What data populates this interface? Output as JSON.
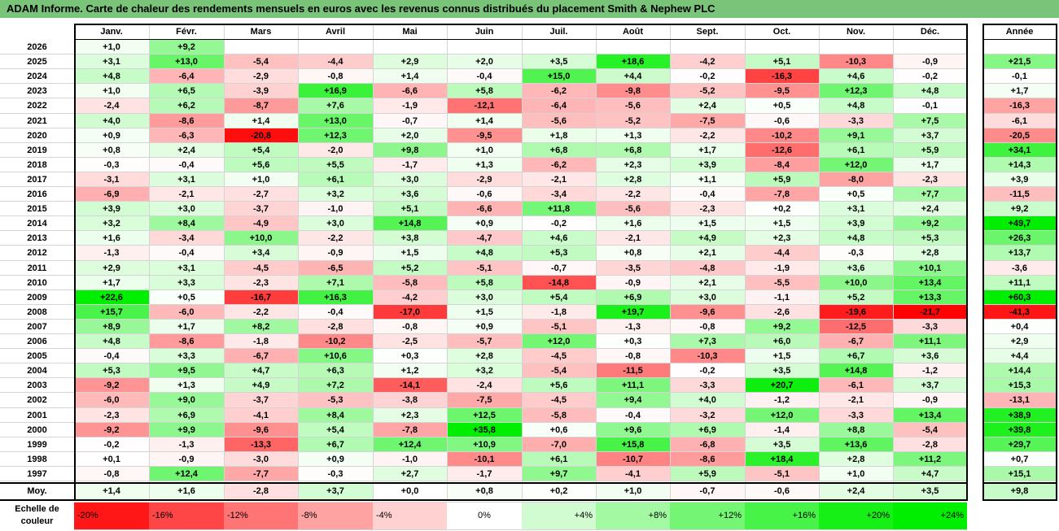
{
  "title": "ADAM Informe. Carte de chaleur des rendements mensuels en euros avec les revenus connus distribués du placement Smith & Nephew PLC",
  "colors": {
    "title_bar": "#7ac47a",
    "max_red": "#ff0000",
    "max_green": "#00ee00",
    "neutral": "#ffffff"
  },
  "chart_data": {
    "type": "heatmap",
    "title": "ADAM Informe. Carte de chaleur des rendements mensuels en euros avec les revenus connus distribués du placement Smith & Nephew PLC",
    "months": [
      "Janv.",
      "Févr.",
      "Mars",
      "Avril",
      "Mai",
      "Juin",
      "Juil.",
      "Août",
      "Sept.",
      "Oct.",
      "Nov.",
      "Déc."
    ],
    "year_header": "Année",
    "rows": [
      {
        "year": "2026",
        "values": [
          "+1,0",
          "+9,2",
          "",
          "",
          "",
          "",
          "",
          "",
          "",
          "",
          "",
          ""
        ],
        "annual": ""
      },
      {
        "year": "2025",
        "values": [
          "+3,1",
          "+13,0",
          "-5,4",
          "-4,4",
          "+2,9",
          "+2,0",
          "+3,5",
          "+18,6",
          "-4,2",
          "+5,1",
          "-10,3",
          "-0,9"
        ],
        "annual": "+21,5"
      },
      {
        "year": "2024",
        "values": [
          "+4,8",
          "-6,4",
          "-2,9",
          "-0,8",
          "+1,4",
          "-0,4",
          "+15,0",
          "+4,4",
          "-0,2",
          "-16,3",
          "+4,6",
          "-0,2"
        ],
        "annual": "-0,1"
      },
      {
        "year": "2023",
        "values": [
          "+1,0",
          "+6,5",
          "-3,9",
          "+16,9",
          "-6,6",
          "+5,8",
          "-6,2",
          "-9,8",
          "-5,2",
          "-9,5",
          "+12,3",
          "+4,8"
        ],
        "annual": "+1,7"
      },
      {
        "year": "2022",
        "values": [
          "-2,4",
          "+6,2",
          "-8,7",
          "+7,6",
          "-1,9",
          "-12,1",
          "-6,4",
          "-5,6",
          "+2,4",
          "+0,5",
          "+4,8",
          "-0,1"
        ],
        "annual": "-16,3"
      },
      {
        "year": "2021",
        "values": [
          "+4,0",
          "-8,6",
          "+1,4",
          "+13,0",
          "-0,7",
          "+1,4",
          "-5,6",
          "-5,2",
          "-7,5",
          "-0,6",
          "-3,3",
          "+7,5"
        ],
        "annual": "-6,1"
      },
      {
        "year": "2020",
        "values": [
          "+0,9",
          "-6,3",
          "-20,8",
          "+12,3",
          "+2,0",
          "-9,5",
          "+1,8",
          "+1,3",
          "-2,2",
          "-10,2",
          "+9,1",
          "+3,7"
        ],
        "annual": "-20,5"
      },
      {
        "year": "2019",
        "values": [
          "+0,8",
          "+2,4",
          "+5,4",
          "-2,0",
          "+9,8",
          "+1,0",
          "+6,8",
          "+6,8",
          "+1,7",
          "-12,6",
          "+6,1",
          "+5,9"
        ],
        "annual": "+34,1"
      },
      {
        "year": "2018",
        "values": [
          "-0,3",
          "-0,4",
          "+5,6",
          "+5,5",
          "-1,7",
          "+1,3",
          "-6,2",
          "+2,3",
          "+3,9",
          "-8,4",
          "+12,0",
          "+1,7"
        ],
        "annual": "+14,3"
      },
      {
        "year": "2017",
        "values": [
          "-3,1",
          "+3,1",
          "+1,0",
          "+6,1",
          "+3,0",
          "-2,9",
          "-2,1",
          "+2,8",
          "+1,1",
          "+5,9",
          "-8,0",
          "-2,3"
        ],
        "annual": "+3,9"
      },
      {
        "year": "2016",
        "values": [
          "-6,9",
          "-2,1",
          "-2,7",
          "+3,2",
          "+3,6",
          "-0,6",
          "-3,4",
          "-2,2",
          "-0,4",
          "-7,8",
          "+0,5",
          "+7,7"
        ],
        "annual": "-11,5"
      },
      {
        "year": "2015",
        "values": [
          "+3,9",
          "+3,0",
          "-3,7",
          "-1,0",
          "+5,1",
          "-6,6",
          "+11,8",
          "-5,6",
          "-2,3",
          "+0,2",
          "+3,1",
          "+2,4"
        ],
        "annual": "+9,2"
      },
      {
        "year": "2014",
        "values": [
          "+3,2",
          "+8,4",
          "-4,9",
          "+3,0",
          "+14,8",
          "+0,9",
          "-0,2",
          "+1,6",
          "+1,5",
          "+1,5",
          "+3,9",
          "+9,2"
        ],
        "annual": "+49,7"
      },
      {
        "year": "2013",
        "values": [
          "+1,6",
          "-3,4",
          "+10,0",
          "-2,2",
          "+3,8",
          "-4,7",
          "+4,6",
          "-2,1",
          "+4,9",
          "+2,3",
          "+4,8",
          "+5,3"
        ],
        "annual": "+26,3"
      },
      {
        "year": "2012",
        "values": [
          "-1,3",
          "-0,4",
          "+3,4",
          "-0,9",
          "+1,5",
          "+4,8",
          "+5,3",
          "+0,8",
          "+2,1",
          "-4,4",
          "-0,3",
          "+2,8"
        ],
        "annual": "+13,7"
      },
      {
        "year": "2011",
        "values": [
          "+2,9",
          "+3,1",
          "-4,5",
          "-6,5",
          "+5,2",
          "-5,1",
          "-0,7",
          "-3,5",
          "-4,8",
          "-1,9",
          "+3,6",
          "+10,1"
        ],
        "annual": "-3,6"
      },
      {
        "year": "2010",
        "values": [
          "+1,7",
          "+3,3",
          "-2,3",
          "+7,1",
          "-5,8",
          "+5,8",
          "-14,8",
          "-0,9",
          "+2,1",
          "-5,5",
          "+10,0",
          "+13,4"
        ],
        "annual": "+11,1"
      },
      {
        "year": "2009",
        "values": [
          "+22,6",
          "+0,5",
          "-16,7",
          "+16,3",
          "-4,2",
          "+3,0",
          "+5,4",
          "+6,9",
          "+3,0",
          "-1,1",
          "+5,2",
          "+13,3"
        ],
        "annual": "+60,3"
      },
      {
        "year": "2008",
        "values": [
          "+15,7",
          "-6,0",
          "-2,2",
          "-0,4",
          "-17,0",
          "+1,5",
          "-1,8",
          "+19,7",
          "-9,6",
          "-2,6",
          "-19,6",
          "-21,7"
        ],
        "annual": "-41,3"
      },
      {
        "year": "2007",
        "values": [
          "+8,9",
          "+1,7",
          "+8,2",
          "-2,8",
          "-0,8",
          "+0,9",
          "-5,1",
          "-1,3",
          "-0,8",
          "+9,2",
          "-12,5",
          "-3,3"
        ],
        "annual": "+0,4"
      },
      {
        "year": "2006",
        "values": [
          "+4,8",
          "-8,6",
          "-1,8",
          "-10,2",
          "-2,5",
          "-5,7",
          "+12,0",
          "+0,3",
          "+7,3",
          "+6,0",
          "-6,7",
          "+11,1"
        ],
        "annual": "+2,9"
      },
      {
        "year": "2005",
        "values": [
          "-0,4",
          "+3,3",
          "-6,7",
          "+10,6",
          "+0,3",
          "+2,8",
          "-4,5",
          "-0,8",
          "-10,3",
          "+1,5",
          "+6,7",
          "+3,6"
        ],
        "annual": "+4,4"
      },
      {
        "year": "2004",
        "values": [
          "+5,3",
          "+9,5",
          "+4,7",
          "+6,3",
          "+1,2",
          "+3,2",
          "-5,4",
          "-11,5",
          "-0,2",
          "+3,5",
          "+14,8",
          "-1,2"
        ],
        "annual": "+14,4"
      },
      {
        "year": "2003",
        "values": [
          "-9,2",
          "+1,3",
          "+4,9",
          "+7,2",
          "-14,1",
          "-2,4",
          "+5,6",
          "+11,1",
          "-3,3",
          "+20,7",
          "-6,1",
          "+3,7"
        ],
        "annual": "+15,3"
      },
      {
        "year": "2002",
        "values": [
          "-6,0",
          "+9,0",
          "-3,7",
          "-5,3",
          "-3,8",
          "-7,5",
          "-4,5",
          "+9,4",
          "+4,0",
          "-1,2",
          "-2,1",
          "-0,9"
        ],
        "annual": "-13,1"
      },
      {
        "year": "2001",
        "values": [
          "-2,3",
          "+6,9",
          "-4,1",
          "+8,4",
          "+2,3",
          "+12,5",
          "-5,8",
          "-0,4",
          "-3,2",
          "+12,0",
          "-3,3",
          "+13,4"
        ],
        "annual": "+38,9"
      },
      {
        "year": "2000",
        "values": [
          "-9,2",
          "+9,9",
          "-9,6",
          "+5,4",
          "-7,8",
          "+35,8",
          "+0,6",
          "+9,6",
          "+6,9",
          "-1,4",
          "+8,8",
          "-5,4"
        ],
        "annual": "+39,8"
      },
      {
        "year": "1999",
        "values": [
          "-0,2",
          "-1,3",
          "-13,3",
          "+6,7",
          "+12,4",
          "+10,9",
          "-7,0",
          "+15,8",
          "-6,8",
          "+3,5",
          "+13,6",
          "-2,8"
        ],
        "annual": "+29,7"
      },
      {
        "year": "1998",
        "values": [
          "+0,1",
          "-0,9",
          "-3,0",
          "+0,9",
          "-1,0",
          "-10,1",
          "+6,1",
          "-10,7",
          "-8,6",
          "+18,4",
          "+2,8",
          "+11,2"
        ],
        "annual": "+0,7"
      },
      {
        "year": "1997",
        "values": [
          "-0,8",
          "+12,4",
          "-7,7",
          "-0,3",
          "+2,7",
          "-1,7",
          "+9,7",
          "-4,1",
          "+5,9",
          "-5,1",
          "+1,0",
          "+4,7"
        ],
        "annual": "+15,1"
      }
    ],
    "average": {
      "label": "Moy.",
      "values": [
        "+1,4",
        "+1,6",
        "-2,8",
        "+3,7",
        "+0,0",
        "+0,8",
        "+0,2",
        "+1,0",
        "-0,7",
        "-0,6",
        "+2,4",
        "+3,5"
      ],
      "annual": "+9,8"
    },
    "scale": {
      "label_line1": "Echelle de",
      "label_line2": "couleur",
      "steps": [
        {
          "label": "-20%",
          "value": -20
        },
        {
          "label": "-16%",
          "value": -16
        },
        {
          "label": "-12%",
          "value": -12
        },
        {
          "label": "-8%",
          "value": -8
        },
        {
          "label": "-4%",
          "value": -4
        },
        {
          "label": "0%",
          "value": 0
        },
        {
          "label": "+4%",
          "value": 4
        },
        {
          "label": "+8%",
          "value": 8
        },
        {
          "label": "+12%",
          "value": 12
        },
        {
          "label": "+16%",
          "value": 16
        },
        {
          "label": "+20%",
          "value": 20
        },
        {
          "label": "+24%",
          "value": 24
        }
      ]
    }
  }
}
